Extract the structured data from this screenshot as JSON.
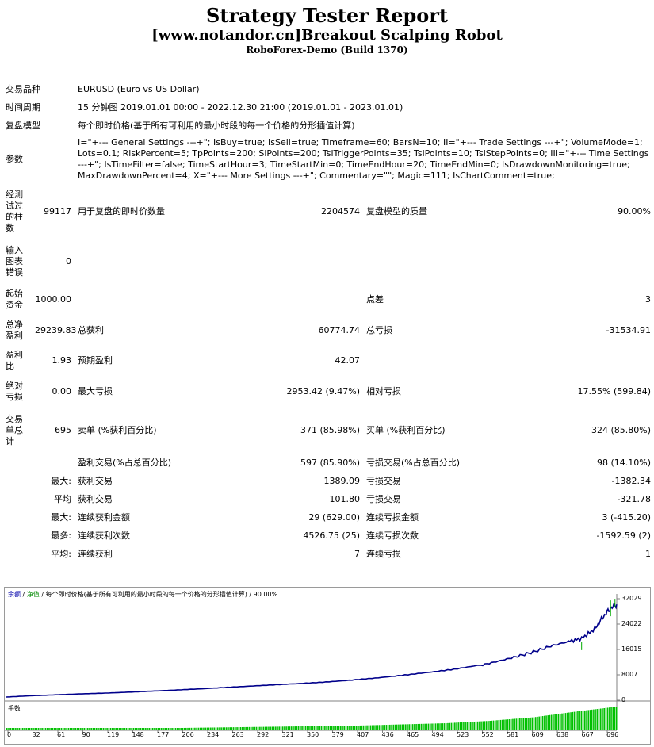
{
  "header": {
    "title": "Strategy Tester Report",
    "ea_name": "[www.notandor.cn]Breakout Scalping Robot",
    "server": "RoboForex-Demo (Build 1370)"
  },
  "info": {
    "symbol_label": "交易品种",
    "symbol": "EURUSD (Euro vs US Dollar)",
    "period_label": "时间周期",
    "period": "15 分钟图 2019.01.01 00:00 - 2022.12.30 21:00 (2019.01.01 - 2023.01.01)",
    "model_label": "复盘模型",
    "model": "每个即时价格(基于所有可利用的最小时段的每一个价格的分形插值计算)",
    "params_label": "参数",
    "params": "I=\"+--- General Settings ---+\"; IsBuy=true; IsSell=true; Timeframe=60; BarsN=10; II=\"+--- Trade Settings ---+\"; VolumeMode=1; Lots=0.1; RiskPercent=5; TpPoints=200; SlPoints=200; TslTriggerPoints=35; TslPoints=10; TslStepPoints=0; III=\"+--- Time Settings ---+\"; IsTimeFilter=false; TimeStartHour=3; TimeStartMin=0; TimeEndHour=20; TimeEndMin=0; IsDrawdownMonitoring=true; MaxDrawdownPercent=4; X=\"+--- More Settings ---+\"; Commentary=\"\"; Magic=111; IsChartComment=true;"
  },
  "stats": {
    "bars_label": "经测试过的柱数",
    "bars": "99117",
    "ticks_label": "用于复盘的即时价数量",
    "ticks": "2204574",
    "quality_label": "复盘模型的质量",
    "quality": "90.00%",
    "errors_label": "输入图表错误",
    "errors": "0",
    "deposit_label": "起始资金",
    "deposit": "1000.00",
    "spread_label": "点差",
    "spread": "3",
    "net_label": "总净盈利",
    "net": "29239.83",
    "gross_profit_label": "总获利",
    "gross_profit": "60774.74",
    "gross_loss_label": "总亏损",
    "gross_loss": "-31534.91",
    "pf_label": "盈利比",
    "pf": "1.93",
    "payoff_label": "预期盈利",
    "payoff": "42.07",
    "absdd_label": "绝对亏损",
    "absdd": "0.00",
    "maxdd_label": "最大亏损",
    "maxdd": "2953.42 (9.47%)",
    "reldd_label": "相对亏损",
    "reldd": "17.55% (599.84)",
    "trades_label": "交易单总计",
    "trades": "695",
    "short_label": "卖单 (%获利百分比)",
    "short": "371 (85.98%)",
    "long_label": "买单 (%获利百分比)",
    "long": "324 (85.80%)",
    "win_label": "盈利交易(%占总百分比)",
    "win": "597 (85.90%)",
    "loss_label": "亏损交易(%占总百分比)",
    "loss": "98 (14.10%)",
    "max_prefix": "最大:",
    "lg_win_label": "获利交易",
    "lg_win": "1389.09",
    "lg_loss_label": "亏损交易",
    "lg_loss": "-1382.34",
    "avg_prefix": "平均",
    "avg_win_label": "获利交易",
    "avg_win": "101.80",
    "avg_loss_label": "亏损交易",
    "avg_loss": "-321.78",
    "max_prefix2": "最大:",
    "mcw_label": "连续获利金额",
    "mcw": "29 (629.00)",
    "mcl_label": "连续亏损金额",
    "mcl": "3 (-415.20)",
    "most_prefix": "最多:",
    "mcp_label": "连续获利次数",
    "mcp": "4526.75 (25)",
    "mcpl_label": "连续亏损次数",
    "mcpl": "-1592.59 (2)",
    "avg_prefix2": "平均:",
    "acw_label": "连续获利",
    "acw": "7",
    "acl_label": "连续亏损",
    "acl": "1"
  },
  "chart": {
    "legend_balance": "余额",
    "legend_sep1": "/",
    "legend_equity": "净值",
    "legend_rest": "/ 每个即时价格(基于所有可利用的最小时段的每一个价格的分形插值计算) / 90.00%",
    "volume_label": "手数",
    "balance_color": "#00008b",
    "equity_color": "#00aa00",
    "volume_color": "#00c000"
  },
  "chart_data": {
    "type": "line",
    "y_ticks": [
      "32029",
      "24022",
      "16015",
      "8007",
      "0"
    ],
    "x_ticks": [
      "0",
      "32",
      "61",
      "90",
      "119",
      "148",
      "177",
      "206",
      "234",
      "263",
      "292",
      "321",
      "350",
      "379",
      "407",
      "436",
      "465",
      "494",
      "523",
      "552",
      "581",
      "609",
      "638",
      "667",
      "696"
    ],
    "ylim": [
      0,
      32029
    ],
    "xlim": [
      0,
      695
    ],
    "series": [
      {
        "values_x": [
          0,
          30,
          60,
          90,
          120,
          150,
          180,
          210,
          240,
          270,
          300,
          330,
          360,
          390,
          420,
          450,
          480,
          510,
          540,
          560,
          580,
          600,
          620,
          640,
          655,
          670,
          680,
          688,
          695
        ],
        "values_y": [
          1000,
          1400,
          1700,
          2000,
          2300,
          2700,
          3100,
          3500,
          3900,
          4300,
          4700,
          5100,
          5600,
          6300,
          7100,
          8000,
          8900,
          9800,
          11000,
          12300,
          13700,
          15200,
          17100,
          18500,
          19500,
          22500,
          26500,
          29000,
          30239
        ]
      }
    ],
    "volume_x": [
      0,
      100,
      200,
      300,
      400,
      500,
      550,
      600,
      650,
      695
    ],
    "volume_y": [
      0.1,
      0.1,
      0.1,
      0.15,
      0.2,
      0.3,
      0.4,
      0.55,
      0.8,
      1.0
    ]
  }
}
